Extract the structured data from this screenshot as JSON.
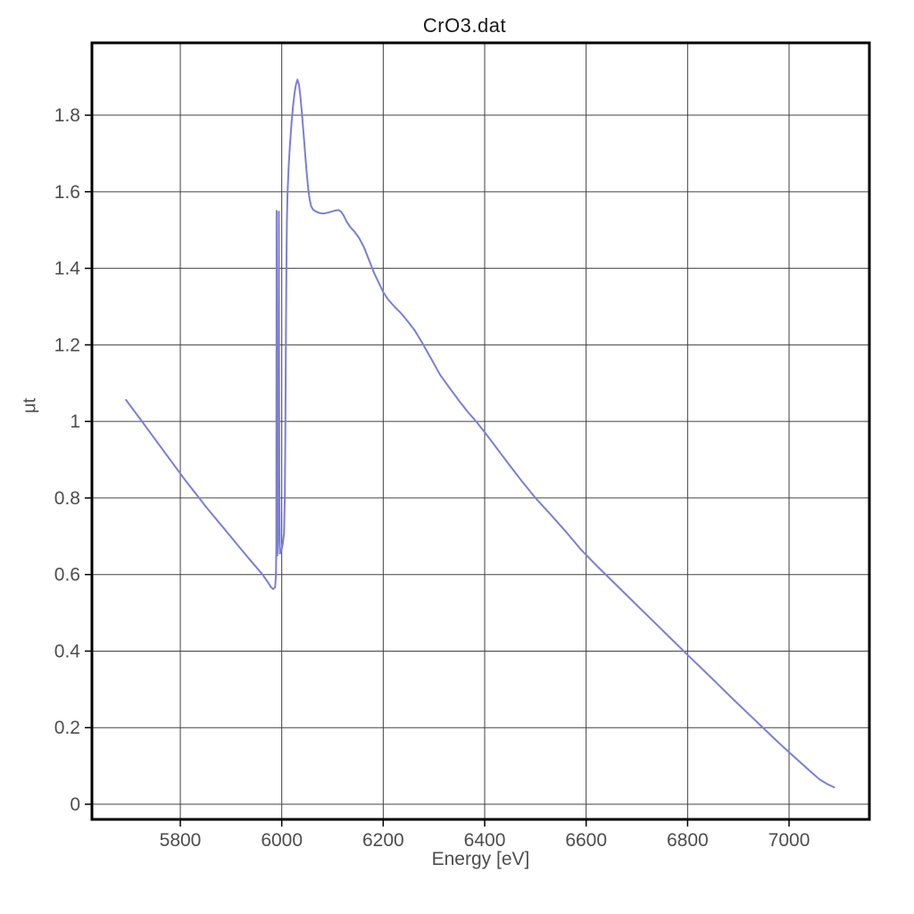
{
  "window": {
    "background_color": "#ffffff"
  },
  "chart_data": {
    "type": "line",
    "title": "CrO3.dat",
    "xlabel": "Energy [eV]",
    "ylabel": "μt",
    "xlim": [
      5625.8,
      7158.3
    ],
    "ylim": [
      -0.0396,
      1.989
    ],
    "x_ticks": [
      5800,
      6000,
      6200,
      6400,
      6600,
      6800,
      7000
    ],
    "x_tick_labels": [
      "5800",
      "6000",
      "6200",
      "6400",
      "6600",
      "6800",
      "7000"
    ],
    "y_ticks": [
      0,
      0.2,
      0.4,
      0.6,
      0.8,
      1,
      1.2,
      1.4,
      1.6,
      1.8
    ],
    "y_tick_labels": [
      "0",
      "0.2",
      "0.4",
      "0.6",
      "0.8",
      "1",
      "1.2",
      "1.4",
      "1.6",
      "1.8"
    ],
    "grid": true,
    "legend": "none",
    "line_color": "#7b7ed5",
    "grid_color": "#404040",
    "frame_color": "#000000",
    "tick_color": "#000000",
    "text_color": "#4d4d4d",
    "title_color": "#1a1a1a",
    "series": [
      {
        "name": "CrO3.dat",
        "points": [
          [
            5693,
            1.056
          ],
          [
            5715,
            1.017
          ],
          [
            5740,
            0.972
          ],
          [
            5765,
            0.927
          ],
          [
            5790,
            0.882
          ],
          [
            5810,
            0.846
          ],
          [
            5830,
            0.812
          ],
          [
            5850,
            0.778
          ],
          [
            5870,
            0.746
          ],
          [
            5890,
            0.714
          ],
          [
            5910,
            0.682
          ],
          [
            5930,
            0.65
          ],
          [
            5948,
            0.622
          ],
          [
            5962,
            0.6
          ],
          [
            5972,
            0.581
          ],
          [
            5979,
            0.567
          ],
          [
            5983,
            0.562
          ],
          [
            5987,
            0.567
          ],
          [
            5988.6,
            0.601
          ],
          [
            5989.3,
            0.68
          ],
          [
            5989.9,
            1.55
          ],
          [
            5990.7,
            0.95
          ],
          [
            5991.5,
            0.65
          ],
          [
            5992.7,
            0.69
          ],
          [
            5993.5,
            0.8
          ],
          [
            5994.2,
            1.548
          ],
          [
            5995.2,
            0.86
          ],
          [
            5996.3,
            0.655
          ],
          [
            5998,
            0.658
          ],
          [
            6000,
            0.668
          ],
          [
            6002,
            0.681
          ],
          [
            6004.5,
            0.706
          ],
          [
            6006,
            0.8
          ],
          [
            6007,
            0.97
          ],
          [
            6008,
            1.18
          ],
          [
            6009,
            1.38
          ],
          [
            6010,
            1.52
          ],
          [
            6011.5,
            1.601
          ],
          [
            6013.5,
            1.665
          ],
          [
            6016,
            1.721
          ],
          [
            6019,
            1.776
          ],
          [
            6022,
            1.821
          ],
          [
            6025,
            1.856
          ],
          [
            6028,
            1.88
          ],
          [
            6031,
            1.893
          ],
          [
            6034,
            1.879
          ],
          [
            6037,
            1.846
          ],
          [
            6040,
            1.801
          ],
          [
            6043,
            1.752
          ],
          [
            6046,
            1.701
          ],
          [
            6049,
            1.652
          ],
          [
            6052,
            1.61
          ],
          [
            6055,
            1.58
          ],
          [
            6058,
            1.562
          ],
          [
            6062,
            1.553
          ],
          [
            6068,
            1.548
          ],
          [
            6075,
            1.544
          ],
          [
            6082,
            1.543
          ],
          [
            6090,
            1.545
          ],
          [
            6098,
            1.548
          ],
          [
            6106,
            1.551
          ],
          [
            6112,
            1.552
          ],
          [
            6117,
            1.548
          ],
          [
            6122,
            1.538
          ],
          [
            6128,
            1.522
          ],
          [
            6135,
            1.508
          ],
          [
            6143,
            1.496
          ],
          [
            6152,
            1.48
          ],
          [
            6162,
            1.455
          ],
          [
            6172,
            1.422
          ],
          [
            6182,
            1.388
          ],
          [
            6192,
            1.36
          ],
          [
            6200,
            1.338
          ],
          [
            6210,
            1.318
          ],
          [
            6222,
            1.3
          ],
          [
            6235,
            1.283
          ],
          [
            6248,
            1.262
          ],
          [
            6262,
            1.238
          ],
          [
            6277,
            1.205
          ],
          [
            6294,
            1.165
          ],
          [
            6312,
            1.122
          ],
          [
            6330,
            1.089
          ],
          [
            6350,
            1.053
          ],
          [
            6366,
            1.026
          ],
          [
            6383,
            1.0
          ],
          [
            6400,
            0.972
          ],
          [
            6425,
            0.928
          ],
          [
            6450,
            0.884
          ],
          [
            6475,
            0.841
          ],
          [
            6500,
            0.8
          ],
          [
            6530,
            0.757
          ],
          [
            6560,
            0.712
          ],
          [
            6590,
            0.665
          ],
          [
            6620,
            0.624
          ],
          [
            6650,
            0.585
          ],
          [
            6680,
            0.546
          ],
          [
            6710,
            0.507
          ],
          [
            6740,
            0.468
          ],
          [
            6770,
            0.429
          ],
          [
            6800,
            0.39
          ],
          [
            6830,
            0.352
          ],
          [
            6860,
            0.313
          ],
          [
            6890,
            0.274
          ],
          [
            6920,
            0.236
          ],
          [
            6950,
            0.198
          ],
          [
            6980,
            0.16
          ],
          [
            7000,
            0.136
          ],
          [
            7020,
            0.112
          ],
          [
            7040,
            0.088
          ],
          [
            7060,
            0.065
          ],
          [
            7075,
            0.053
          ],
          [
            7089,
            0.044
          ]
        ]
      }
    ]
  }
}
